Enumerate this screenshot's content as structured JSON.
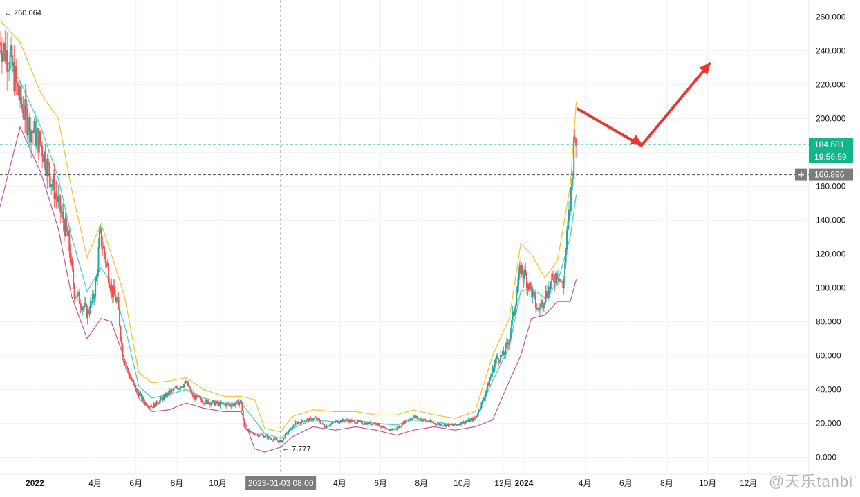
{
  "colors": {
    "up": "#26a69a",
    "down": "#ef5350",
    "upper_band": "#f2c12e",
    "basis": "#3ecfc0",
    "lower_band": "#c2559b",
    "price_badge": "#13b58b",
    "crosshair_badge": "#7c7c7c",
    "annotation_arrow": "#e53935",
    "grid": "#f0f3fa"
  },
  "icons": {
    "plus": "plus-icon",
    "left_arrow": "arrow-left-icon"
  },
  "chart_data": {
    "type": "candlestick",
    "y_axis": {
      "range": [
        -10,
        270
      ],
      "ticks": [
        "260.000",
        "240.000",
        "220.000",
        "200.000",
        "180.000",
        "160.000",
        "140.000",
        "120.000",
        "100.000",
        "80.000",
        "60.000",
        "40.000",
        "20.000",
        "0.000"
      ]
    },
    "x_axis": {
      "range": [
        "2021-11-10",
        "2025-03-01"
      ],
      "labels": [
        {
          "text": "2022",
          "date": "2022-01-01",
          "bold": true
        },
        {
          "text": "4月",
          "date": "2022-04-01"
        },
        {
          "text": "6月",
          "date": "2022-06-01"
        },
        {
          "text": "8月",
          "date": "2022-08-01"
        },
        {
          "text": "10月",
          "date": "2022-10-01"
        },
        {
          "text": "4月",
          "date": "2023-04-01"
        },
        {
          "text": "6月",
          "date": "2023-06-01"
        },
        {
          "text": "8月",
          "date": "2023-08-01"
        },
        {
          "text": "10月",
          "date": "2023-10-01"
        },
        {
          "text": "12月",
          "date": "2023-12-01"
        },
        {
          "text": "2024",
          "date": "2024-01-01",
          "bold": true
        },
        {
          "text": "4月",
          "date": "2024-04-01"
        },
        {
          "text": "6月",
          "date": "2024-06-01"
        },
        {
          "text": "8月",
          "date": "2024-08-01"
        },
        {
          "text": "10月",
          "date": "2024-10-01"
        },
        {
          "text": "12月",
          "date": "2024-12-01"
        }
      ]
    },
    "price_path": [
      [
        "2021-11-10",
        245
      ],
      [
        "2021-11-25",
        235
      ],
      [
        "2021-12-10",
        210
      ],
      [
        "2021-12-25",
        195
      ],
      [
        "2022-01-10",
        185
      ],
      [
        "2022-01-25",
        165
      ],
      [
        "2022-02-05",
        150
      ],
      [
        "2022-02-20",
        128
      ],
      [
        "2022-03-01",
        98
      ],
      [
        "2022-03-10",
        92
      ],
      [
        "2022-03-20",
        85
      ],
      [
        "2022-03-28",
        92
      ],
      [
        "2022-04-03",
        105
      ],
      [
        "2022-04-08",
        132
      ],
      [
        "2022-04-15",
        120
      ],
      [
        "2022-04-25",
        100
      ],
      [
        "2022-05-05",
        90
      ],
      [
        "2022-05-12",
        60
      ],
      [
        "2022-05-20",
        50
      ],
      [
        "2022-06-01",
        40
      ],
      [
        "2022-06-15",
        32
      ],
      [
        "2022-06-25",
        30
      ],
      [
        "2022-07-05",
        33
      ],
      [
        "2022-07-20",
        38
      ],
      [
        "2022-08-05",
        42
      ],
      [
        "2022-08-15",
        44
      ],
      [
        "2022-08-25",
        36
      ],
      [
        "2022-09-10",
        33
      ],
      [
        "2022-09-25",
        32
      ],
      [
        "2022-10-10",
        31
      ],
      [
        "2022-10-25",
        31
      ],
      [
        "2022-11-05",
        33
      ],
      [
        "2022-11-09",
        18
      ],
      [
        "2022-11-20",
        14
      ],
      [
        "2022-12-05",
        13
      ],
      [
        "2022-12-20",
        11
      ],
      [
        "2023-01-03",
        9
      ],
      [
        "2023-01-12",
        14
      ],
      [
        "2023-01-25",
        20
      ],
      [
        "2023-02-10",
        22
      ],
      [
        "2023-02-25",
        23
      ],
      [
        "2023-03-10",
        18
      ],
      [
        "2023-03-25",
        21
      ],
      [
        "2023-04-10",
        22
      ],
      [
        "2023-04-25",
        21
      ],
      [
        "2023-05-10",
        20
      ],
      [
        "2023-05-25",
        20
      ],
      [
        "2023-06-10",
        16
      ],
      [
        "2023-06-25",
        17
      ],
      [
        "2023-07-10",
        22
      ],
      [
        "2023-07-20",
        24
      ],
      [
        "2023-08-05",
        22
      ],
      [
        "2023-08-20",
        20
      ],
      [
        "2023-09-05",
        19
      ],
      [
        "2023-09-20",
        19
      ],
      [
        "2023-10-05",
        21
      ],
      [
        "2023-10-20",
        23
      ],
      [
        "2023-11-01",
        34
      ],
      [
        "2023-11-10",
        45
      ],
      [
        "2023-11-20",
        58
      ],
      [
        "2023-12-01",
        60
      ],
      [
        "2023-12-10",
        70
      ],
      [
        "2023-12-20",
        95
      ],
      [
        "2023-12-27",
        112
      ],
      [
        "2024-01-05",
        105
      ],
      [
        "2024-01-12",
        98
      ],
      [
        "2024-01-22",
        86
      ],
      [
        "2024-02-01",
        95
      ],
      [
        "2024-02-10",
        102
      ],
      [
        "2024-02-20",
        110
      ],
      [
        "2024-02-28",
        100
      ],
      [
        "2024-03-05",
        130
      ],
      [
        "2024-03-10",
        150
      ],
      [
        "2024-03-14",
        172
      ],
      [
        "2024-03-17",
        198
      ],
      [
        "2024-03-19",
        184.681
      ]
    ],
    "series": [
      {
        "name": "upper_band",
        "points": [
          [
            "2021-11-10",
            258
          ],
          [
            "2021-12-10",
            245
          ],
          [
            "2022-01-10",
            215
          ],
          [
            "2022-02-05",
            200
          ],
          [
            "2022-02-25",
            158
          ],
          [
            "2022-03-20",
            118
          ],
          [
            "2022-04-10",
            138
          ],
          [
            "2022-04-25",
            120
          ],
          [
            "2022-05-15",
            95
          ],
          [
            "2022-06-05",
            50
          ],
          [
            "2022-06-25",
            44
          ],
          [
            "2022-07-20",
            45
          ],
          [
            "2022-08-15",
            47
          ],
          [
            "2022-09-10",
            40
          ],
          [
            "2022-10-10",
            36
          ],
          [
            "2022-11-05",
            36
          ],
          [
            "2022-11-25",
            34
          ],
          [
            "2022-12-10",
            17
          ],
          [
            "2023-01-03",
            15
          ],
          [
            "2023-01-20",
            24
          ],
          [
            "2023-02-20",
            28
          ],
          [
            "2023-03-25",
            27
          ],
          [
            "2023-04-25",
            27
          ],
          [
            "2023-05-25",
            25
          ],
          [
            "2023-06-25",
            25
          ],
          [
            "2023-07-20",
            28
          ],
          [
            "2023-08-20",
            25
          ],
          [
            "2023-09-20",
            23
          ],
          [
            "2023-10-20",
            27
          ],
          [
            "2023-11-15",
            60
          ],
          [
            "2023-12-10",
            82
          ],
          [
            "2023-12-27",
            126
          ],
          [
            "2024-01-12",
            120
          ],
          [
            "2024-02-01",
            106
          ],
          [
            "2024-02-20",
            116
          ],
          [
            "2024-03-10",
            160
          ],
          [
            "2024-03-19",
            210
          ]
        ]
      },
      {
        "name": "basis",
        "points": [
          [
            "2021-11-10",
            240
          ],
          [
            "2021-12-10",
            222
          ],
          [
            "2022-01-10",
            195
          ],
          [
            "2022-02-05",
            165
          ],
          [
            "2022-02-25",
            130
          ],
          [
            "2022-03-20",
            98
          ],
          [
            "2022-04-10",
            112
          ],
          [
            "2022-04-25",
            103
          ],
          [
            "2022-05-15",
            78
          ],
          [
            "2022-06-05",
            42
          ],
          [
            "2022-06-25",
            35
          ],
          [
            "2022-07-20",
            37
          ],
          [
            "2022-08-15",
            40
          ],
          [
            "2022-09-10",
            35
          ],
          [
            "2022-10-10",
            32
          ],
          [
            "2022-11-05",
            32
          ],
          [
            "2022-11-25",
            22
          ],
          [
            "2022-12-10",
            14
          ],
          [
            "2023-01-03",
            11
          ],
          [
            "2023-01-20",
            17
          ],
          [
            "2023-02-20",
            22
          ],
          [
            "2023-03-25",
            21
          ],
          [
            "2023-04-25",
            22
          ],
          [
            "2023-05-25",
            20
          ],
          [
            "2023-06-25",
            19
          ],
          [
            "2023-07-20",
            22
          ],
          [
            "2023-08-20",
            21
          ],
          [
            "2023-09-20",
            19
          ],
          [
            "2023-10-20",
            22
          ],
          [
            "2023-11-15",
            45
          ],
          [
            "2023-12-10",
            65
          ],
          [
            "2023-12-27",
            98
          ],
          [
            "2024-01-12",
            100
          ],
          [
            "2024-02-01",
            94
          ],
          [
            "2024-02-20",
            103
          ],
          [
            "2024-03-10",
            130
          ],
          [
            "2024-03-19",
            155
          ]
        ]
      },
      {
        "name": "lower_band",
        "points": [
          [
            "2021-11-10",
            148
          ],
          [
            "2021-12-10",
            195
          ],
          [
            "2022-01-10",
            168
          ],
          [
            "2022-02-05",
            135
          ],
          [
            "2022-02-25",
            95
          ],
          [
            "2022-03-20",
            70
          ],
          [
            "2022-04-10",
            82
          ],
          [
            "2022-04-25",
            80
          ],
          [
            "2022-05-15",
            58
          ],
          [
            "2022-06-05",
            35
          ],
          [
            "2022-06-25",
            27
          ],
          [
            "2022-07-20",
            28
          ],
          [
            "2022-08-15",
            32
          ],
          [
            "2022-09-10",
            29
          ],
          [
            "2022-10-10",
            27
          ],
          [
            "2022-11-05",
            27
          ],
          [
            "2022-11-25",
            5
          ],
          [
            "2022-12-10",
            3
          ],
          [
            "2023-01-03",
            6
          ],
          [
            "2023-01-20",
            12
          ],
          [
            "2023-02-20",
            18
          ],
          [
            "2023-03-25",
            16
          ],
          [
            "2023-04-25",
            18
          ],
          [
            "2023-05-25",
            16
          ],
          [
            "2023-06-25",
            13
          ],
          [
            "2023-07-20",
            16
          ],
          [
            "2023-08-20",
            18
          ],
          [
            "2023-09-20",
            16
          ],
          [
            "2023-10-20",
            18
          ],
          [
            "2023-11-15",
            22
          ],
          [
            "2023-12-10",
            45
          ],
          [
            "2023-12-27",
            60
          ],
          [
            "2024-01-12",
            82
          ],
          [
            "2024-02-01",
            84
          ],
          [
            "2024-02-20",
            92
          ],
          [
            "2024-03-10",
            92
          ],
          [
            "2024-03-19",
            105
          ]
        ]
      }
    ],
    "last_price": "184.681",
    "countdown": "19:56:59",
    "crosshair_price": "166.896",
    "crosshair_date": "2023-01-03 08:00",
    "high_label": "260.064",
    "low_label": "7.777"
  },
  "annotation": {
    "arrow_points": [
      {
        "date": "2024-03-20",
        "value": 206
      },
      {
        "date": "2024-06-24",
        "value": 184
      },
      {
        "date": "2024-10-05",
        "value": 233
      }
    ]
  },
  "watermark": "@天乐tanbi"
}
